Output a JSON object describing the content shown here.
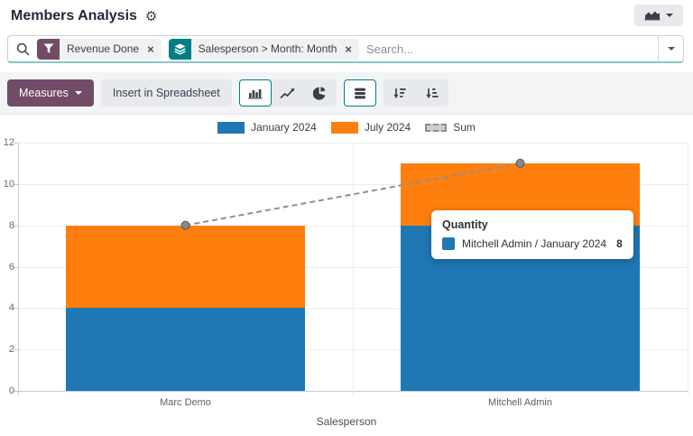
{
  "header": {
    "title": "Members Analysis"
  },
  "search": {
    "placeholder": "Search...",
    "facets": [
      {
        "label": "Revenue Done",
        "icon": "filter-icon",
        "color": "#714B67"
      },
      {
        "label": "Salesperson > Month: Month",
        "icon": "layers-icon",
        "color": "#017E84"
      }
    ]
  },
  "icons": {
    "close": "×",
    "gear": "⚙"
  },
  "toolbar": {
    "measures_label": "Measures",
    "insert_spreadsheet_label": "Insert in Spreadsheet",
    "chart_type_buttons": [
      {
        "name": "bar-chart-button",
        "active": true
      },
      {
        "name": "line-chart-button",
        "active": false
      },
      {
        "name": "pie-chart-button",
        "active": false
      }
    ],
    "stacked_button": {
      "name": "stacked-button",
      "active": true
    },
    "sort_buttons": [
      {
        "name": "sort-descending-button",
        "active": false
      },
      {
        "name": "sort-ascending-button",
        "active": false
      }
    ]
  },
  "colors": {
    "primary": "#714B67",
    "accent_teal": "#017E84",
    "bar_blue": "#1F77B4",
    "bar_orange": "#FF7F0E",
    "sum_gray": "#8F8F8F"
  },
  "tooltip": {
    "title": "Quantity",
    "rows": [
      {
        "label": "Mitchell Admin / January 2024",
        "value": "8",
        "color": "#1F77B4"
      }
    ]
  },
  "chart_data": {
    "type": "bar",
    "stacked": true,
    "title": "",
    "xlabel": "Salesperson",
    "ylabel": "",
    "ylim": [
      0,
      12
    ],
    "yticks": [
      0,
      2,
      4,
      6,
      8,
      10,
      12
    ],
    "grid": true,
    "legend_position": "top",
    "categories": [
      "Marc Demo",
      "Mitchell Admin"
    ],
    "series": [
      {
        "name": "January 2024",
        "color": "#1f77b4",
        "values": [
          4,
          8
        ]
      },
      {
        "name": "July 2024",
        "color": "#ff7f0e",
        "values": [
          4,
          3
        ]
      },
      {
        "name": "Sum",
        "type": "line",
        "style": "dashed",
        "color": "#8f8f8f",
        "values": [
          8,
          11
        ]
      }
    ]
  }
}
